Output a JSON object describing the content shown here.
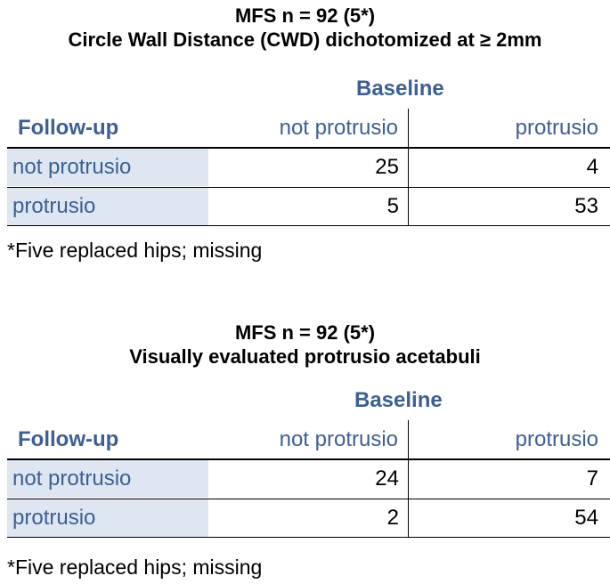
{
  "tables": [
    {
      "title_line1": "MFS n = 92 (5*)",
      "title_line2": "Circle Wall Distance (CWD) dichotomized at ≥ 2mm",
      "baseline_label": "Baseline",
      "followup_label": "Follow-up",
      "columns": [
        "not protrusio",
        "protrusio"
      ],
      "rows": [
        {
          "label": "not protrusio",
          "values": [
            "25",
            "4"
          ]
        },
        {
          "label": "protrusio",
          "values": [
            "5",
            "53"
          ]
        }
      ],
      "footnote": "*Five replaced hips; missing"
    },
    {
      "title_line1": "MFS n = 92 (5*)",
      "title_line2": "Visually evaluated protrusio acetabuli",
      "baseline_label": "Baseline",
      "followup_label": "Follow-up",
      "columns": [
        "not protrusio",
        "protrusio"
      ],
      "rows": [
        {
          "label": "not protrusio",
          "values": [
            "24",
            "7"
          ]
        },
        {
          "label": "protrusio",
          "values": [
            "2",
            "54"
          ]
        }
      ],
      "footnote": "*Five replaced hips; missing"
    }
  ],
  "colors": {
    "accent_text": "#3d5f93",
    "row_label_bg": "#dde6f1"
  }
}
